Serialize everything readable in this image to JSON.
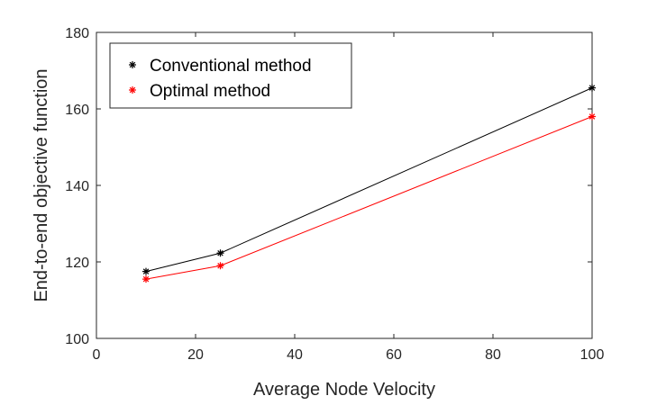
{
  "chart_data": {
    "type": "line",
    "title": "",
    "xlabel": "Average Node Velocity",
    "ylabel": "End-to-end objective function",
    "xlim": [
      0,
      100
    ],
    "ylim": [
      100,
      180
    ],
    "xticks": [
      "0",
      "20",
      "40",
      "60",
      "80",
      "100"
    ],
    "yticks": [
      "100",
      "120",
      "140",
      "160",
      "180"
    ],
    "x": [
      10,
      25,
      100
    ],
    "series": [
      {
        "name": "Conventional method",
        "values": [
          117.5,
          122.3,
          165.5
        ],
        "color": "#000000",
        "marker": "asterisk"
      },
      {
        "name": "Optimal method",
        "values": [
          115.5,
          119.0,
          158.0
        ],
        "color": "#ff0000",
        "marker": "asterisk"
      }
    ],
    "legend": "top-left",
    "grid": false
  }
}
